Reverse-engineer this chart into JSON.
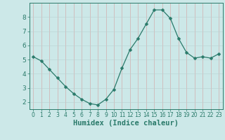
{
  "x": [
    0,
    1,
    2,
    3,
    4,
    5,
    6,
    7,
    8,
    9,
    10,
    11,
    12,
    13,
    14,
    15,
    16,
    17,
    18,
    19,
    20,
    21,
    22,
    23
  ],
  "y": [
    5.2,
    4.9,
    4.3,
    3.7,
    3.1,
    2.6,
    2.2,
    1.9,
    1.8,
    2.2,
    2.9,
    4.4,
    5.7,
    6.5,
    7.5,
    8.5,
    8.5,
    7.9,
    6.5,
    5.5,
    5.1,
    5.2,
    5.1,
    5.4
  ],
  "line_color": "#2a7a6a",
  "marker": "D",
  "marker_size": 2.5,
  "bg_color": "#cce8e8",
  "grid_major_color": "#b0cccc",
  "grid_minor_color": "#dbeaea",
  "xlabel": "Humidex (Indice chaleur)",
  "ylim": [
    1.5,
    9.0
  ],
  "xlim": [
    -0.5,
    23.5
  ],
  "yticks": [
    2,
    3,
    4,
    5,
    6,
    7,
    8
  ],
  "xticks": [
    0,
    1,
    2,
    3,
    4,
    5,
    6,
    7,
    8,
    9,
    10,
    11,
    12,
    13,
    14,
    15,
    16,
    17,
    18,
    19,
    20,
    21,
    22,
    23
  ],
  "tick_color": "#2a7a6a",
  "xlabel_fontsize": 7.5,
  "tick_fontsize_x": 5.5,
  "tick_fontsize_y": 6.5
}
